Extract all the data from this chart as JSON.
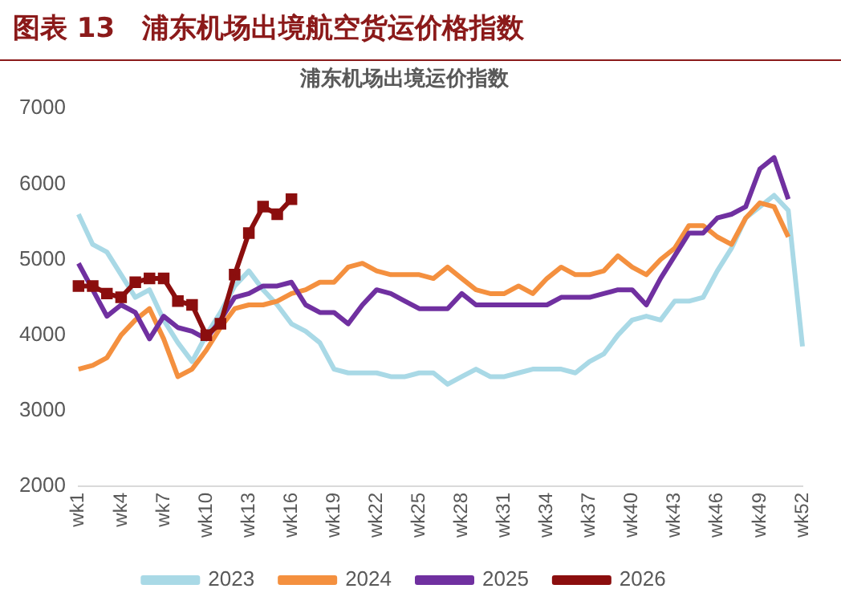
{
  "chart_data": {
    "type": "line",
    "title": "图表 13　浦东机场出境航空货运价格指数",
    "subtitle": "浦东机场出境运价指数",
    "categories": [
      "wk1",
      null,
      null,
      "wk4",
      null,
      null,
      "wk7",
      null,
      null,
      "wk10",
      null,
      null,
      "wk13",
      null,
      null,
      "wk16",
      null,
      null,
      "wk19",
      null,
      null,
      "wk22",
      null,
      null,
      "wk25",
      null,
      null,
      "wk28",
      null,
      null,
      "wk31",
      null,
      null,
      "wk34",
      null,
      null,
      "wk37",
      null,
      null,
      "wk40",
      null,
      null,
      "wk43",
      null,
      null,
      "wk46",
      null,
      null,
      "wk49",
      null,
      null,
      "wk52"
    ],
    "series": [
      {
        "name": "2023",
        "color": "#a9d9e6",
        "marker": "none",
        "values": [
          5600,
          5200,
          5100,
          4800,
          4500,
          4600,
          4200,
          3900,
          3650,
          4000,
          4300,
          4650,
          4850,
          4600,
          4400,
          4150,
          4050,
          3900,
          3550,
          3500,
          3500,
          3500,
          3450,
          3450,
          3500,
          3500,
          3350,
          3450,
          3550,
          3450,
          3450,
          3500,
          3550,
          3550,
          3550,
          3500,
          3650,
          3750,
          4000,
          4200,
          4250,
          4200,
          4450,
          4450,
          4500,
          4850,
          5150,
          5550,
          5700,
          5850,
          5650,
          3850
        ]
      },
      {
        "name": "2024",
        "color": "#f4903f",
        "marker": "none",
        "values": [
          3550,
          3600,
          3700,
          4000,
          4200,
          4350,
          3950,
          3450,
          3550,
          3800,
          4100,
          4350,
          4400,
          4400,
          4450,
          4550,
          4600,
          4700,
          4700,
          4900,
          4950,
          4850,
          4800,
          4800,
          4800,
          4750,
          4900,
          4750,
          4600,
          4550,
          4550,
          4650,
          4550,
          4750,
          4900,
          4800,
          4800,
          4850,
          5050,
          4900,
          4800,
          5000,
          5150,
          5450,
          5450,
          5300,
          5200,
          5550,
          5750,
          5700,
          5300,
          null
        ]
      },
      {
        "name": "2025",
        "color": "#7030a0",
        "marker": "none",
        "values": [
          4950,
          4600,
          4250,
          4400,
          4300,
          3950,
          4250,
          4100,
          4050,
          3950,
          4200,
          4500,
          4550,
          4650,
          4650,
          4700,
          4400,
          4300,
          4300,
          4150,
          4400,
          4600,
          4550,
          4450,
          4350,
          4350,
          4350,
          4550,
          4400,
          4400,
          4400,
          4400,
          4400,
          4400,
          4500,
          4500,
          4500,
          4550,
          4600,
          4600,
          4400,
          4750,
          5050,
          5350,
          5350,
          5550,
          5600,
          5700,
          6200,
          6350,
          5800,
          null
        ]
      },
      {
        "name": "2026",
        "color": "#8b0e0e",
        "marker": "square",
        "values": [
          4650,
          4650,
          4550,
          4500,
          4700,
          4750,
          4750,
          4450,
          4400,
          4000,
          4150,
          4800,
          5350,
          5700,
          5600,
          5800,
          null,
          null,
          null,
          null,
          null,
          null,
          null,
          null,
          null,
          null,
          null,
          null,
          null,
          null,
          null,
          null,
          null,
          null,
          null,
          null,
          null,
          null,
          null,
          null,
          null,
          null,
          null,
          null,
          null,
          null,
          null,
          null,
          null,
          null,
          null,
          null
        ]
      }
    ],
    "ylim": [
      2000,
      7000
    ],
    "yticks": [
      2000,
      3000,
      4000,
      5000,
      6000,
      7000
    ],
    "grid": false,
    "legend": "bottom",
    "line_style": "solid"
  }
}
